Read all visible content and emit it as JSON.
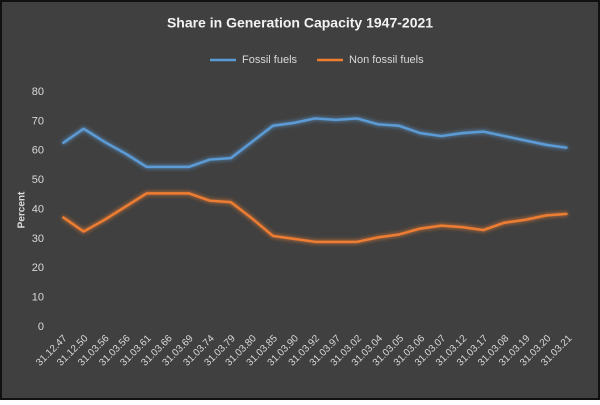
{
  "chart_data": {
    "type": "line",
    "title": "Share in Generation Capacity 1947-2021",
    "y_label": "Percent",
    "categories": [
      "31.12.47",
      "31.12.50",
      "31.03.56",
      "31.03.56",
      "31.03.61",
      "31.03.66",
      "31.03.69",
      "31.03.74",
      "31.03.79",
      "31.03.80",
      "31.03.85",
      "31.03.90",
      "31.03.92",
      "31.03.97",
      "31.03.02",
      "31.03.04",
      "31.03.05",
      "31.03.06",
      "31.03.07",
      "31.03.12",
      "31.03.17",
      "31.03.08",
      "31.03.19",
      "31.03.20",
      "31.03.21"
    ],
    "series": [
      {
        "name": "Fossil fuels",
        "color": "#5b9bd5",
        "values": [
          62.5,
          67.5,
          63,
          59,
          54.5,
          54.5,
          54.5,
          57,
          57.5,
          63,
          68.5,
          69.5,
          71,
          70.5,
          71,
          69,
          68.5,
          66,
          65,
          66,
          66.5,
          65,
          63.5,
          62,
          61
        ]
      },
      {
        "name": "Non fossil fuels",
        "color": "#ed7d31",
        "values": [
          37.5,
          32.5,
          36.5,
          41,
          45.5,
          45.5,
          45.5,
          43,
          42.5,
          37,
          31,
          30,
          29,
          29,
          29,
          30.5,
          31.5,
          33.5,
          34.5,
          34,
          33,
          35.5,
          36.5,
          38,
          38.5
        ]
      }
    ],
    "ylim": [
      0,
      80
    ],
    "yticks": [
      0,
      10,
      20,
      30,
      40,
      50,
      60,
      70,
      80
    ],
    "grid": false,
    "legend": "top"
  }
}
